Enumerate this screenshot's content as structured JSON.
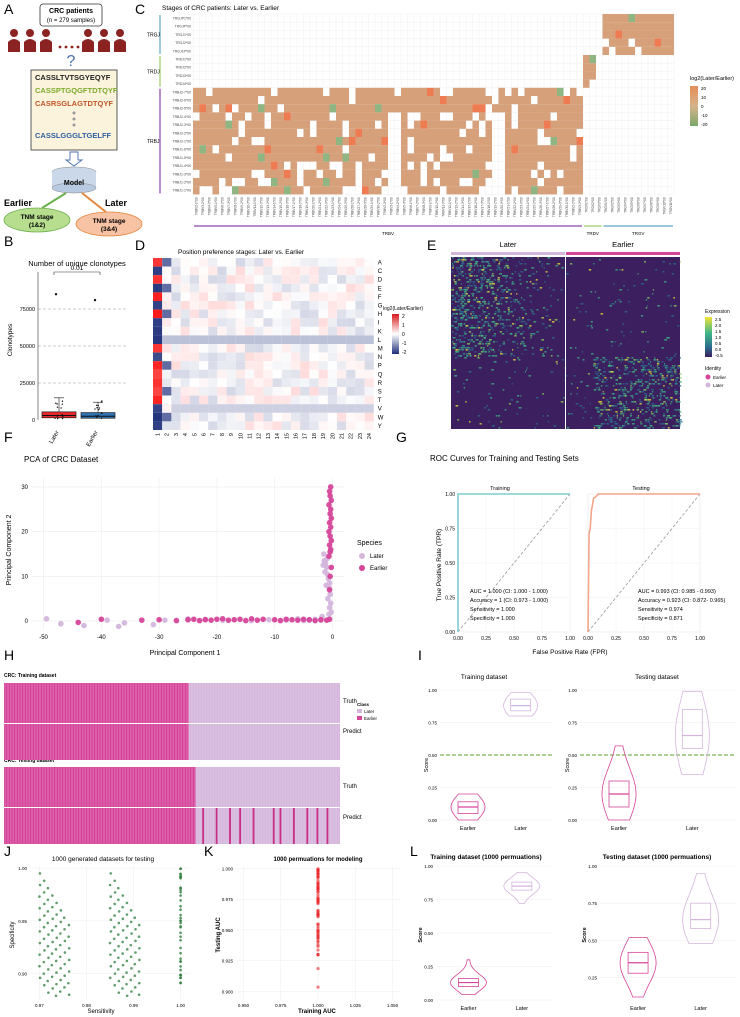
{
  "panel_labels": [
    "A",
    "B",
    "C",
    "D",
    "E",
    "F",
    "G",
    "H",
    "I",
    "J",
    "K",
    "L"
  ],
  "colors": {
    "later": "#d4b5dc",
    "earlier": "#d6449a",
    "earlier_dark": "#c92f86",
    "red": "#e8282b",
    "blue": "#2f74b5",
    "teal": "#7ccfd0",
    "salmon": "#f4a58a",
    "green": "#2e7d3c",
    "olive": "#7aa83a",
    "tan": "#d5a07a",
    "heat_bg": "#3b1f5e"
  },
  "panelA": {
    "title_line1": "CRC patients",
    "title_line2": "(n = 279 samples)",
    "sequences": [
      "CASSLTVTSGYEQYF",
      "CASSPTGQGFTDTQYF",
      "CASRSGLAGTDTQYF",
      "CASSLGGGLTGELFF"
    ],
    "question": "?",
    "model_label": "Model",
    "earlier_label": "Earlier",
    "later_label": "Later",
    "earlier_stage": "TNM stage",
    "earlier_stage_sub": "(1&2)",
    "later_stage": "TNM stage",
    "later_stage_sub": "(3&4)"
  },
  "panelB": {
    "title": "Number of unique clonotypes",
    "ylabel": "Clonotypes",
    "pvalue": "0.01",
    "chart_data": {
      "type": "box",
      "categories": [
        "Later",
        "Earlier"
      ],
      "ylim": [
        0,
        100000
      ],
      "yticks": [
        "0",
        "25000",
        "50000",
        "75000"
      ],
      "ytick_values": [
        0,
        25000,
        50000,
        75000
      ],
      "boxes": [
        {
          "name": "Later",
          "q1": 1500,
          "median": 3000,
          "q3": 5500,
          "max_whisker": 15000,
          "outliers": [
            85000
          ]
        },
        {
          "name": "Earlier",
          "q1": 1200,
          "median": 2500,
          "q3": 5000,
          "max_whisker": 12000,
          "outliers": [
            81000
          ]
        }
      ]
    }
  },
  "panelC": {
    "title": "Stages of CRC patients: Later vs. Earlier",
    "row_groups": [
      {
        "name": "TRGJ",
        "rows": [
          "TRGJP1*00",
          "TRGJP*00",
          "TRGJ1*00",
          "TRGJ2*00",
          "TRGJ1P*00"
        ]
      },
      {
        "name": "TRDJ",
        "rows": [
          "TRDJ1*00",
          "TRDJ2*00",
          "TRDJ3*00",
          "TRDJ4*00"
        ]
      },
      {
        "name": "TRBJ",
        "rows": [
          "TRBJ2-7*00",
          "TRBJ2-6*00",
          "TRBJ2-5*00",
          "TRBJ2-4*00",
          "TRBJ2-3*00",
          "TRBJ2-2*00",
          "TRBJ2-1*00",
          "TRBJ1-6*00",
          "TRBJ1-5*00",
          "TRBJ1-4*00",
          "TRBJ1-3*00",
          "TRBJ1-2*00",
          "TRBJ1-1*00"
        ]
      }
    ],
    "col_groups": [
      {
        "name": "TRBV",
        "count": 60
      },
      {
        "name": "TRDV",
        "count": 3
      },
      {
        "name": "TRGV",
        "count": 11
      }
    ],
    "legend_title": "log2(Later/Earlier)",
    "legend_ticks": [
      "20",
      "10",
      "0",
      "-10",
      "-20"
    ]
  },
  "panelD": {
    "title": "Position preference stages: Later vs. Earlier",
    "rows": [
      "A",
      "C",
      "D",
      "E",
      "F",
      "G",
      "H",
      "I",
      "K",
      "L",
      "M",
      "N",
      "P",
      "Q",
      "R",
      "S",
      "T",
      "V",
      "W",
      "Y"
    ],
    "cols": [
      "1",
      "2",
      "3",
      "4",
      "5",
      "6",
      "7",
      "8",
      "9",
      "10",
      "11",
      "12",
      "13",
      "14",
      "15",
      "16",
      "17",
      "18",
      "19",
      "20",
      "21",
      "22",
      "23",
      "24"
    ],
    "legend_title": "log2(Later/Earlier)",
    "legend_ticks": [
      "2",
      "1",
      "0",
      "-1",
      "-2"
    ]
  },
  "panelE": {
    "group_later": "Later",
    "group_earlier": "Earlier",
    "legend_expr_title": "Expression",
    "legend_expr_ticks": [
      "2.5",
      "2.0",
      "1.5",
      "1.0",
      "0.5",
      "0.0",
      "-0.5"
    ],
    "legend_id_title": "Identity",
    "legend_id_items": [
      "Earlier",
      "Later"
    ]
  },
  "panelF": {
    "title": "PCA of CRC Dataset",
    "xlabel": "Principal Component 1",
    "ylabel": "Principal Component 2",
    "legend_title": "Species",
    "legend_items": [
      "Later",
      "Earlier"
    ],
    "chart_data": {
      "type": "scatter",
      "xlim": [
        -52,
        2
      ],
      "ylim": [
        -2,
        32
      ],
      "xticks": [
        -50,
        -40,
        -30,
        -20,
        -10,
        0
      ],
      "yticks": [
        0,
        10,
        20,
        30
      ],
      "series": [
        {
          "name": "Later",
          "points": [
            [
              -49.5,
              0.5
            ],
            [
              -47,
              -0.6
            ],
            [
              -43,
              -1
            ],
            [
              -39,
              0.2
            ],
            [
              -37,
              -1.2
            ],
            [
              -36,
              -0.4
            ],
            [
              -31,
              -0.8
            ],
            [
              -29,
              0.2
            ],
            [
              -25,
              0.5
            ],
            [
              -22,
              0.4
            ],
            [
              -19,
              0.2
            ],
            [
              -14,
              0.1
            ],
            [
              -11,
              0.3
            ],
            [
              -8,
              0.2
            ],
            [
              -6,
              0.5
            ],
            [
              -5,
              0.1
            ],
            [
              -4,
              0.2
            ],
            [
              -3,
              0.4
            ],
            [
              -2,
              0.2
            ],
            [
              -1.5,
              15
            ],
            [
              -1.2,
              13
            ],
            [
              -1,
              12
            ],
            [
              -1.3,
              11
            ],
            [
              -0.9,
              10.5
            ],
            [
              -0.7,
              9.5
            ],
            [
              -0.5,
              8.5
            ],
            [
              -1.1,
              8
            ],
            [
              -0.6,
              7.5
            ],
            [
              -0.4,
              6
            ],
            [
              -0.8,
              5
            ],
            [
              -0.3,
              4
            ],
            [
              -0.5,
              3
            ],
            [
              -0.2,
              2
            ],
            [
              -0.6,
              1.5
            ],
            [
              -1.8,
              1
            ],
            [
              -1.4,
              13.5
            ],
            [
              -0.9,
              14
            ],
            [
              -1.6,
              12.5
            ]
          ]
        },
        {
          "name": "Earlier",
          "points": [
            [
              -44,
              -0.3
            ],
            [
              -40,
              0.4
            ],
            [
              -33,
              0.2
            ],
            [
              -30,
              0.3
            ],
            [
              -27,
              0.1
            ],
            [
              -25,
              0.3
            ],
            [
              -24,
              0.4
            ],
            [
              -23,
              0.1
            ],
            [
              -22,
              0.3
            ],
            [
              -21,
              0.2
            ],
            [
              -20,
              0.4
            ],
            [
              -19,
              0.5
            ],
            [
              -18,
              0.2
            ],
            [
              -17,
              0.3
            ],
            [
              -16,
              0.4
            ],
            [
              -15,
              0.1
            ],
            [
              -14,
              0.5
            ],
            [
              -13,
              0.2
            ],
            [
              -12,
              0.4
            ],
            [
              -10,
              0.3
            ],
            [
              -9,
              0.1
            ],
            [
              -8,
              0.4
            ],
            [
              -7,
              0.3
            ],
            [
              -6,
              0.2
            ],
            [
              -5,
              0.4
            ],
            [
              -4,
              0.3
            ],
            [
              -3,
              0.1
            ],
            [
              -2,
              0.3
            ],
            [
              -1,
              0.2
            ],
            [
              -0.5,
              0.4
            ],
            [
              -0.3,
              30
            ],
            [
              -0.5,
              29
            ],
            [
              -0.4,
              28
            ],
            [
              -0.2,
              27
            ],
            [
              -0.6,
              26
            ],
            [
              -0.3,
              25
            ],
            [
              -0.4,
              24
            ],
            [
              -0.2,
              23
            ],
            [
              -0.5,
              22
            ],
            [
              -0.3,
              21
            ],
            [
              -0.6,
              20
            ],
            [
              -0.4,
              19
            ],
            [
              -0.2,
              18
            ],
            [
              -0.5,
              17
            ],
            [
              -0.3,
              16
            ],
            [
              -0.4,
              15.5
            ],
            [
              -0.6,
              14.5
            ],
            [
              -0.2,
              12
            ],
            [
              -0.4,
              10
            ],
            [
              -0.5,
              7
            ]
          ]
        }
      ]
    }
  },
  "panelG": {
    "title": "ROC Curves for Training and Testing Sets",
    "xlabel": "False Positive Rate (FPR)",
    "ylabel": "True Positive Rate (TPR)",
    "facets": [
      "Training",
      "Testing"
    ],
    "xticks": [
      "0.00",
      "0.25",
      "0.50",
      "0.75",
      "1.00"
    ],
    "yticks": [
      "0.00",
      "0.25",
      "0.50",
      "0.75",
      "1.00"
    ],
    "training_stats": [
      "AUC = 1.000 (CI: 1.000 - 1.000)",
      "Accuracy = 1 (CI: 0.973 - 1.000)",
      "Sensitivity = 1.000",
      "Specificity = 1.000"
    ],
    "testing_stats": [
      "AUC = 0.993 (CI: 0.985 - 0.993)",
      "Accuracy = 0.923 (CI: 0.872- 0.965)",
      "Sensitivity = 0.974",
      "Specificity = 0.871"
    ],
    "chart_data": {
      "type": "line",
      "training": [
        [
          0,
          0
        ],
        [
          0,
          1
        ],
        [
          1,
          1
        ]
      ],
      "testing": [
        [
          0,
          0
        ],
        [
          0.01,
          0.72
        ],
        [
          0.02,
          0.75
        ],
        [
          0.03,
          0.88
        ],
        [
          0.04,
          0.92
        ],
        [
          0.05,
          0.97
        ],
        [
          0.07,
          0.98
        ],
        [
          0.09,
          1
        ],
        [
          1,
          1
        ]
      ]
    }
  },
  "panelH": {
    "train_title": "CRC: Training dataset",
    "test_title": "CRC: Testing dataset",
    "truth_label": "Truth",
    "predict_label": "Predict",
    "legend_title": "Class",
    "legend_items": [
      "Later",
      "Earlier"
    ]
  },
  "panelI": {
    "facets": [
      "Training dataset",
      "Testing dataset"
    ],
    "ylabel": "Score",
    "categories": [
      "Earlier",
      "Later"
    ],
    "yticks": [
      "0.00",
      "0.25",
      "0.50",
      "0.75",
      "1.00"
    ],
    "threshold": 0.5,
    "chart_data": {
      "type": "violin",
      "training": [
        {
          "name": "Earlier",
          "min": 0.0,
          "q1": 0.05,
          "median": 0.1,
          "q3": 0.14,
          "max": 0.2
        },
        {
          "name": "Later",
          "min": 0.8,
          "q1": 0.84,
          "median": 0.88,
          "q3": 0.93,
          "max": 0.98
        }
      ],
      "testing": [
        {
          "name": "Earlier",
          "min": 0.0,
          "q1": 0.1,
          "median": 0.2,
          "q3": 0.3,
          "max": 0.57
        },
        {
          "name": "Later",
          "min": 0.35,
          "q1": 0.55,
          "median": 0.65,
          "q3": 0.85,
          "max": 0.99
        }
      ]
    }
  },
  "panelJ": {
    "title": "1000 generated datasets for testing",
    "xlabel": "Sensitivity",
    "ylabel": "Specificity",
    "xticks": [
      "0.97",
      "0.98",
      "0.99",
      "1.00"
    ],
    "yticks": [
      "0.90",
      "0.95",
      "1.00"
    ]
  },
  "panelK": {
    "title": "1000 permuations for modeling",
    "xlabel": "Training AUC",
    "ylabel": "Testing AUC",
    "xticks": [
      "0.950",
      "0.975",
      "1.000",
      "1.025",
      "1.050"
    ],
    "yticks": [
      "0.900",
      "0.925",
      "0.950",
      "0.975",
      "1.000"
    ],
    "chart_data": {
      "type": "scatter",
      "x": 1.0,
      "y_range": [
        0.898,
        1.0
      ]
    }
  },
  "panelL": {
    "facets": [
      "Training  dataset (1000 permuations)",
      "Testing  dataset (1000 permuations)"
    ],
    "ylabel": "Score",
    "categories": [
      "Earlier",
      "Later"
    ],
    "train_yticks": [
      "0.00",
      "0.25",
      "0.50",
      "0.75",
      "1.00"
    ],
    "test_yticks": [
      "0.25",
      "0.50",
      "0.75",
      "1.00"
    ],
    "chart_data": {
      "type": "violin",
      "training": [
        {
          "name": "Earlier",
          "min": 0.04,
          "q1": 0.1,
          "median": 0.13,
          "q3": 0.16,
          "max": 0.3
        },
        {
          "name": "Later",
          "min": 0.72,
          "q1": 0.82,
          "median": 0.85,
          "q3": 0.88,
          "max": 0.95
        }
      ],
      "testing": [
        {
          "name": "Earlier",
          "min": 0.12,
          "q1": 0.28,
          "median": 0.35,
          "q3": 0.42,
          "max": 0.52
        },
        {
          "name": "Later",
          "min": 0.48,
          "q1": 0.58,
          "median": 0.64,
          "q3": 0.75,
          "max": 0.95
        }
      ]
    }
  }
}
